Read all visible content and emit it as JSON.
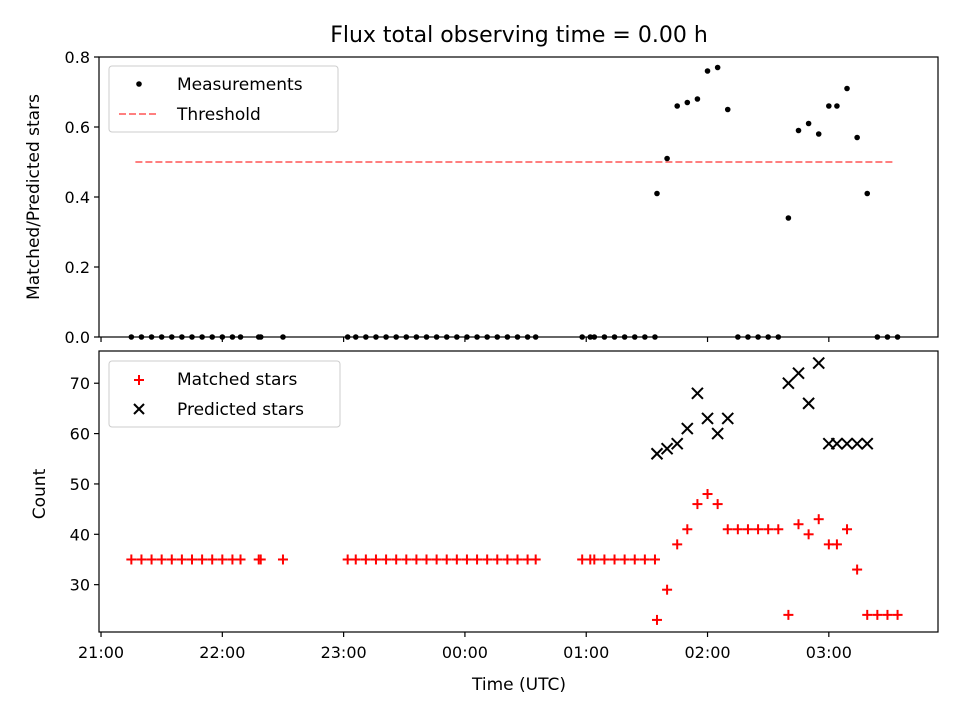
{
  "title": "Flux total observing time = 0.00 h",
  "chart_data": [
    {
      "type": "scatter",
      "ylabel": "Matched/Predicted stars",
      "xlabel": "",
      "xlim": [
        "20:59",
        "03:54"
      ],
      "ylim": [
        0,
        0.8
      ],
      "yticks": [
        "0.0",
        "0.2",
        "0.4",
        "0.6",
        "0.8"
      ],
      "xticks": [
        "21:00",
        "22:00",
        "23:00",
        "00:00",
        "01:00",
        "02:00",
        "03:00"
      ],
      "legend": {
        "position": "top-left",
        "entries": [
          "Measurements",
          "Threshold"
        ]
      },
      "threshold": {
        "name": "Threshold",
        "y": 0.5,
        "x_start": "21:17",
        "x_end": "03:32",
        "color": "#ff7f7f",
        "style": "dashed"
      },
      "series": [
        {
          "name": "Measurements",
          "marker": "dot",
          "color": "#000000",
          "points": [
            [
              "21:15",
              0
            ],
            [
              "21:20",
              0
            ],
            [
              "21:25",
              0
            ],
            [
              "21:30",
              0
            ],
            [
              "21:35",
              0
            ],
            [
              "21:40",
              0
            ],
            [
              "21:45",
              0
            ],
            [
              "21:50",
              0
            ],
            [
              "21:55",
              0
            ],
            [
              "22:00",
              0
            ],
            [
              "22:05",
              0
            ],
            [
              "22:09",
              0
            ],
            [
              "22:18",
              0
            ],
            [
              "22:19",
              0
            ],
            [
              "22:30",
              0
            ],
            [
              "23:02",
              0
            ],
            [
              "23:06",
              0
            ],
            [
              "23:11",
              0
            ],
            [
              "23:16",
              0
            ],
            [
              "23:21",
              0
            ],
            [
              "23:26",
              0
            ],
            [
              "23:31",
              0
            ],
            [
              "23:36",
              0
            ],
            [
              "23:41",
              0
            ],
            [
              "23:46",
              0
            ],
            [
              "23:51",
              0
            ],
            [
              "23:56",
              0
            ],
            [
              "00:01",
              0
            ],
            [
              "00:06",
              0
            ],
            [
              "00:11",
              0
            ],
            [
              "00:16",
              0
            ],
            [
              "00:21",
              0
            ],
            [
              "00:26",
              0
            ],
            [
              "00:31",
              0
            ],
            [
              "00:35",
              0
            ],
            [
              "00:58",
              0
            ],
            [
              "01:02",
              0
            ],
            [
              "01:04",
              0
            ],
            [
              "01:09",
              0
            ],
            [
              "01:14",
              0
            ],
            [
              "01:19",
              0
            ],
            [
              "01:24",
              0
            ],
            [
              "01:29",
              0
            ],
            [
              "01:34",
              0
            ],
            [
              "01:35",
              0.41
            ],
            [
              "01:40",
              0.51
            ],
            [
              "01:45",
              0.66
            ],
            [
              "01:50",
              0.67
            ],
            [
              "01:55",
              0.68
            ],
            [
              "02:00",
              0.76
            ],
            [
              "02:05",
              0.77
            ],
            [
              "02:10",
              0.65
            ],
            [
              "02:15",
              0
            ],
            [
              "02:20",
              0
            ],
            [
              "02:25",
              0
            ],
            [
              "02:30",
              0
            ],
            [
              "02:35",
              0
            ],
            [
              "02:40",
              0.34
            ],
            [
              "02:45",
              0.59
            ],
            [
              "02:50",
              0.61
            ],
            [
              "02:55",
              0.58
            ],
            [
              "03:00",
              0.66
            ],
            [
              "03:04",
              0.66
            ],
            [
              "03:09",
              0.71
            ],
            [
              "03:14",
              0.57
            ],
            [
              "03:19",
              0.41
            ],
            [
              "03:24",
              0
            ],
            [
              "03:29",
              0
            ],
            [
              "03:34",
              0
            ]
          ]
        }
      ]
    },
    {
      "type": "scatter",
      "ylabel": "Count",
      "xlabel": "Time (UTC)",
      "xlim": [
        "20:59",
        "03:54"
      ],
      "ylim": [
        20.6,
        76.4
      ],
      "yticks": [
        "30",
        "40",
        "50",
        "60",
        "70"
      ],
      "xticks": [
        "21:00",
        "22:00",
        "23:00",
        "00:00",
        "01:00",
        "02:00",
        "03:00"
      ],
      "legend": {
        "position": "top-left",
        "entries": [
          "Matched stars",
          "Predicted stars"
        ]
      },
      "series": [
        {
          "name": "Matched stars",
          "marker": "plus",
          "color": "#ff0000",
          "points": [
            [
              "21:15",
              35
            ],
            [
              "21:20",
              35
            ],
            [
              "21:25",
              35
            ],
            [
              "21:30",
              35
            ],
            [
              "21:35",
              35
            ],
            [
              "21:40",
              35
            ],
            [
              "21:45",
              35
            ],
            [
              "21:50",
              35
            ],
            [
              "21:55",
              35
            ],
            [
              "22:00",
              35
            ],
            [
              "22:05",
              35
            ],
            [
              "22:09",
              35
            ],
            [
              "22:18",
              35
            ],
            [
              "22:19",
              35
            ],
            [
              "22:30",
              35
            ],
            [
              "23:02",
              35
            ],
            [
              "23:06",
              35
            ],
            [
              "23:11",
              35
            ],
            [
              "23:16",
              35
            ],
            [
              "23:21",
              35
            ],
            [
              "23:26",
              35
            ],
            [
              "23:31",
              35
            ],
            [
              "23:36",
              35
            ],
            [
              "23:41",
              35
            ],
            [
              "23:46",
              35
            ],
            [
              "23:51",
              35
            ],
            [
              "23:56",
              35
            ],
            [
              "00:01",
              35
            ],
            [
              "00:06",
              35
            ],
            [
              "00:11",
              35
            ],
            [
              "00:16",
              35
            ],
            [
              "00:21",
              35
            ],
            [
              "00:26",
              35
            ],
            [
              "00:31",
              35
            ],
            [
              "00:35",
              35
            ],
            [
              "00:58",
              35
            ],
            [
              "01:02",
              35
            ],
            [
              "01:04",
              35
            ],
            [
              "01:09",
              35
            ],
            [
              "01:14",
              35
            ],
            [
              "01:19",
              35
            ],
            [
              "01:24",
              35
            ],
            [
              "01:29",
              35
            ],
            [
              "01:34",
              35
            ],
            [
              "01:35",
              23
            ],
            [
              "01:40",
              29
            ],
            [
              "01:45",
              38
            ],
            [
              "01:50",
              41
            ],
            [
              "01:55",
              46
            ],
            [
              "02:00",
              48
            ],
            [
              "02:05",
              46
            ],
            [
              "02:10",
              41
            ],
            [
              "02:15",
              41
            ],
            [
              "02:20",
              41
            ],
            [
              "02:25",
              41
            ],
            [
              "02:30",
              41
            ],
            [
              "02:35",
              41
            ],
            [
              "02:40",
              24
            ],
            [
              "02:45",
              42
            ],
            [
              "02:50",
              40
            ],
            [
              "02:55",
              43
            ],
            [
              "03:00",
              38
            ],
            [
              "03:04",
              38
            ],
            [
              "03:09",
              41
            ],
            [
              "03:14",
              33
            ],
            [
              "03:19",
              24
            ],
            [
              "03:24",
              24
            ],
            [
              "03:29",
              24
            ],
            [
              "03:34",
              24
            ]
          ]
        },
        {
          "name": "Predicted stars",
          "marker": "x",
          "color": "#000000",
          "points": [
            [
              "01:35",
              56
            ],
            [
              "01:40",
              57
            ],
            [
              "01:45",
              58
            ],
            [
              "01:50",
              61
            ],
            [
              "01:55",
              68
            ],
            [
              "02:00",
              63
            ],
            [
              "02:05",
              60
            ],
            [
              "02:10",
              63
            ],
            [
              "02:40",
              70
            ],
            [
              "02:45",
              72
            ],
            [
              "02:50",
              66
            ],
            [
              "02:55",
              74
            ],
            [
              "03:00",
              58
            ],
            [
              "03:04",
              58
            ],
            [
              "03:09",
              58
            ],
            [
              "03:14",
              58
            ],
            [
              "03:19",
              58
            ]
          ]
        }
      ]
    }
  ]
}
